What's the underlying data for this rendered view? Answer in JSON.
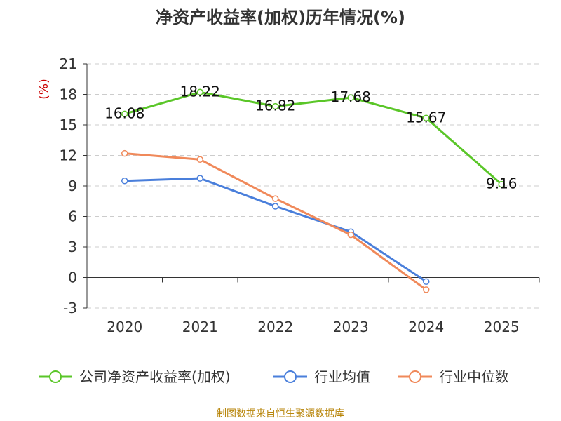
{
  "title": "净资产收益率(加权)历年情况(%)",
  "source": "制图数据来自恒生聚源数据库",
  "chart_data": {
    "type": "line",
    "title": "净资产收益率(加权)历年情况(%)",
    "xlabel": "",
    "ylabel": "(%)",
    "categories": [
      "2020",
      "2021",
      "2022",
      "2023",
      "2024",
      "2025"
    ],
    "ylim": [
      -3,
      21
    ],
    "yticks": [
      -3,
      0,
      3,
      6,
      9,
      12,
      15,
      18,
      21
    ],
    "grid": true,
    "legend_position": "bottom",
    "series": [
      {
        "name": "公司净资产收益率(加权)",
        "color": "#5ac628",
        "values": [
          16.08,
          18.22,
          16.82,
          17.68,
          15.67,
          9.16
        ],
        "labels": [
          "16.08",
          "18.22",
          "16.82",
          "17.68",
          "15.67",
          "9.16"
        ],
        "show_labels": true
      },
      {
        "name": "行业均值",
        "color": "#4a7fdb",
        "values": [
          9.5,
          9.75,
          7.0,
          4.5,
          -0.4,
          null
        ],
        "show_labels": false
      },
      {
        "name": "行业中位数",
        "color": "#f0895a",
        "values": [
          12.2,
          11.6,
          7.75,
          4.2,
          -1.2,
          null
        ],
        "show_labels": false
      }
    ]
  }
}
